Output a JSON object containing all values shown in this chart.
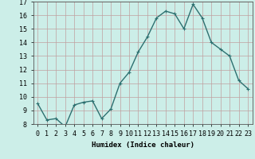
{
  "x": [
    0,
    1,
    2,
    3,
    4,
    5,
    6,
    7,
    8,
    9,
    10,
    11,
    12,
    13,
    14,
    15,
    16,
    17,
    18,
    19,
    20,
    21,
    22,
    23
  ],
  "y": [
    9.5,
    8.3,
    8.4,
    7.8,
    9.4,
    9.6,
    9.7,
    8.4,
    9.1,
    11.0,
    11.8,
    13.3,
    14.4,
    15.8,
    16.3,
    16.1,
    15.0,
    16.8,
    15.8,
    14.0,
    13.5,
    13.0,
    11.2,
    10.6
  ],
  "line_color": "#2d7070",
  "marker": "+",
  "marker_size": 3,
  "bg_color": "#cceee8",
  "grid_color": "#c0a0a0",
  "xlabel": "Humidex (Indice chaleur)",
  "ylim": [
    8,
    17
  ],
  "xlim": [
    -0.5,
    23.5
  ],
  "yticks": [
    8,
    9,
    10,
    11,
    12,
    13,
    14,
    15,
    16,
    17
  ],
  "xtick_labels": [
    "0",
    "1",
    "2",
    "3",
    "4",
    "5",
    "6",
    "7",
    "8",
    "9",
    "10",
    "11",
    "12",
    "13",
    "14",
    "15",
    "16",
    "17",
    "18",
    "19",
    "20",
    "21",
    "22",
    "23"
  ],
  "xlabel_fontsize": 6.5,
  "tick_fontsize": 6
}
